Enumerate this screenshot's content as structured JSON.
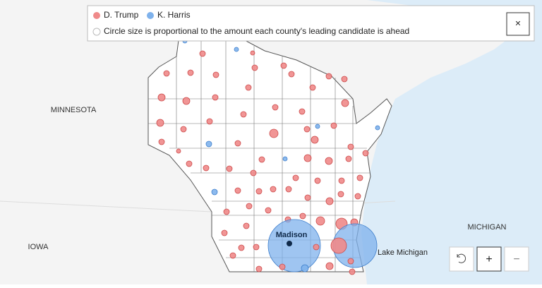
{
  "legend": {
    "items": [
      {
        "label": "D. Trump",
        "color": "#ef8a8a"
      },
      {
        "label": "K. Harris",
        "color": "#7fb2ec"
      }
    ],
    "note": "Circle size is proportional to the amount each county's leading candidate is ahead",
    "close": "×"
  },
  "map": {
    "labels": {
      "minnesota": "MINNESOTA",
      "iowa": "IOWA",
      "michigan": "MICHIGAN",
      "lake": "Lake Michigan",
      "city": "Madison"
    }
  },
  "controls": {
    "zoom_in": "+",
    "zoom_out": "−"
  }
}
